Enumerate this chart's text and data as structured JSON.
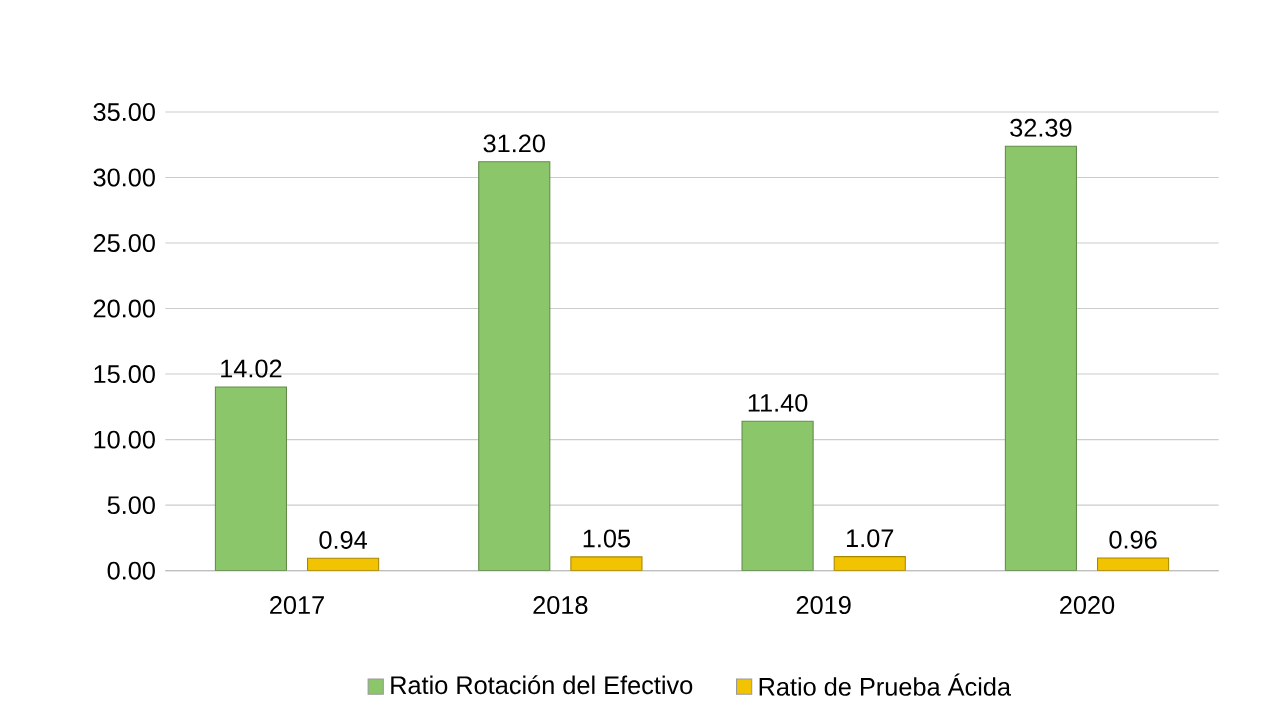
{
  "chart_data": {
    "type": "bar",
    "categories": [
      "2017",
      "2018",
      "2019",
      "2020"
    ],
    "series": [
      {
        "name": "Ratio Rotación del Efectivo",
        "color": "#8cc66a",
        "values": [
          14.02,
          31.2,
          11.4,
          32.39
        ],
        "value_labels": [
          "14.02",
          "31.20",
          "11.40",
          "32.39"
        ]
      },
      {
        "name": "Ratio de Prueba Ácida",
        "color": "#f2c300",
        "values": [
          0.94,
          1.05,
          1.07,
          0.96
        ],
        "value_labels": [
          "0.94",
          "1.05",
          "1.07",
          "0.96"
        ]
      }
    ],
    "ylim": [
      0,
      35
    ],
    "yticks": [
      {
        "value": 0,
        "label": "0.00"
      },
      {
        "value": 5,
        "label": "5.00"
      },
      {
        "value": 10,
        "label": "10.00"
      },
      {
        "value": 15,
        "label": "15.00"
      },
      {
        "value": 20,
        "label": "20.00"
      },
      {
        "value": 25,
        "label": "25.00"
      },
      {
        "value": 30,
        "label": "30.00"
      },
      {
        "value": 35,
        "label": "35.00"
      }
    ],
    "grid": "y",
    "legend": "bottom"
  }
}
